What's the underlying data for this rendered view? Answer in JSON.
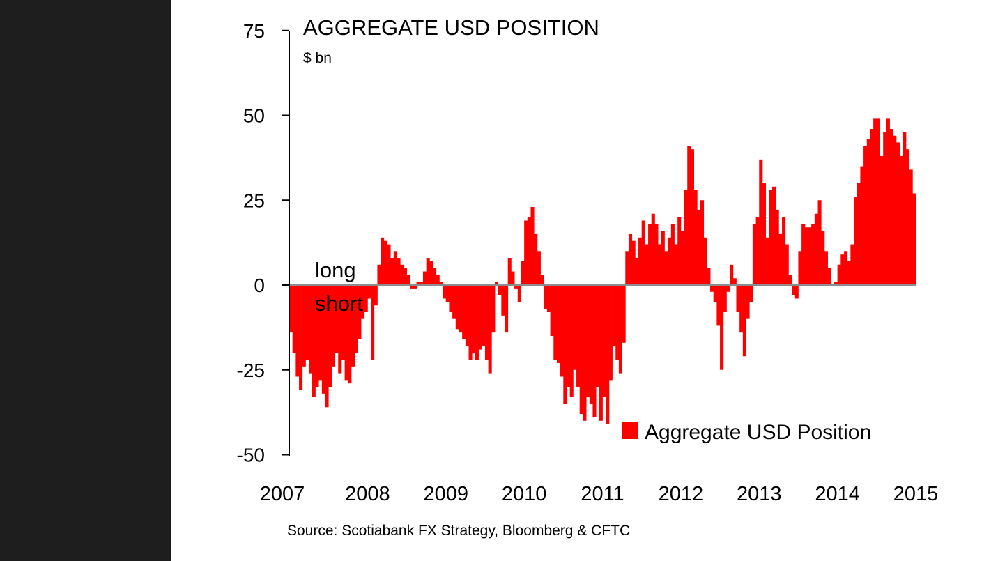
{
  "chart_data": {
    "type": "bar",
    "title": "AGGREGATE USD POSITION",
    "ylabel": "$ bn",
    "xlabel": "",
    "ylim": [
      -50,
      75
    ],
    "yticks": [
      "75",
      "50",
      "25",
      "0",
      "-25",
      "-50"
    ],
    "ytick_values": [
      75,
      50,
      25,
      0,
      -25,
      -50
    ],
    "xticks": [
      "2007",
      "2008",
      "2009",
      "2010",
      "2011",
      "2012",
      "2013",
      "2014",
      "2015"
    ],
    "xlim": [
      2007,
      2015
    ],
    "annotations": {
      "long": "long",
      "short": "short"
    },
    "legend": {
      "label": "Aggregate USD Position",
      "position": "bottom-right"
    },
    "source": "Source: Scotiabank FX Strategy, Bloomberg & CFTC",
    "color": "#ff0000",
    "zero_line_color": "#8c8c8c",
    "periods_per_year": 24,
    "start": 2007,
    "series": [
      {
        "name": "Aggregate USD Position",
        "values": [
          -14,
          -20,
          -27,
          -31,
          -24,
          -22,
          -26,
          -33,
          -30,
          -28,
          -32,
          -36,
          -30,
          -24,
          -20,
          -26,
          -22,
          -28,
          -29,
          -24,
          -20,
          -16,
          -10,
          -8,
          -4,
          -22,
          -6,
          6,
          14,
          13,
          12,
          8,
          10,
          8,
          6,
          5,
          3,
          -1,
          -1,
          1,
          1,
          4,
          8,
          7,
          5,
          3,
          1,
          -4,
          -5,
          -8,
          -10,
          -13,
          -14,
          -16,
          -18,
          -22,
          -20,
          -22,
          -19,
          -18,
          -22,
          -26,
          -14,
          1,
          -3,
          -9,
          -14,
          8,
          4,
          -1,
          -5,
          7,
          19,
          20,
          23,
          15,
          10,
          3,
          -7,
          -8,
          -15,
          -22,
          -23,
          -27,
          -35,
          -30,
          -33,
          -25,
          -30,
          -38,
          -40,
          -33,
          -35,
          -39,
          -30,
          -40,
          -33,
          -41,
          -28,
          -18,
          -22,
          -26,
          -17,
          10,
          15,
          13,
          8,
          14,
          19,
          12,
          18,
          21,
          18,
          12,
          16,
          10,
          14,
          18,
          12,
          20,
          16,
          28,
          41,
          40,
          28,
          22,
          25,
          14,
          5,
          -2,
          -5,
          -12,
          -25,
          -8,
          -2,
          6,
          2,
          -8,
          -14,
          -21,
          -10,
          -5,
          18,
          20,
          37,
          30,
          14,
          28,
          29,
          22,
          15,
          20,
          12,
          3,
          -3,
          -4,
          10,
          18,
          17,
          17,
          18,
          21,
          25,
          16,
          10,
          5,
          0,
          1,
          6,
          9,
          10,
          7,
          12,
          26,
          30,
          35,
          41,
          43,
          46,
          49,
          49,
          38,
          45,
          49,
          46,
          44,
          42,
          38,
          45,
          40,
          34,
          27
        ]
      }
    ]
  }
}
